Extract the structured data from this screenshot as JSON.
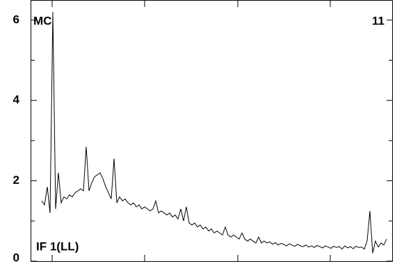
{
  "chart_data": {
    "type": "line",
    "label_left": "MC",
    "label_right": "11",
    "annotation": "IF 1(LL)",
    "color": "#000000",
    "ylim": [
      0,
      6.5
    ],
    "yticks": [
      0,
      2,
      4,
      6
    ],
    "yminorticks": [
      1,
      3,
      5
    ],
    "values": [
      1.5,
      1.4,
      1.85,
      1.2,
      6.2,
      1.3,
      2.2,
      1.45,
      1.6,
      1.55,
      1.65,
      1.6,
      1.7,
      1.75,
      1.8,
      1.75,
      2.85,
      1.75,
      1.95,
      2.1,
      2.15,
      2.2,
      2.05,
      1.85,
      1.7,
      1.55,
      2.55,
      1.45,
      1.6,
      1.5,
      1.55,
      1.45,
      1.4,
      1.45,
      1.35,
      1.4,
      1.3,
      1.35,
      1.3,
      1.25,
      1.3,
      1.5,
      1.2,
      1.25,
      1.2,
      1.15,
      1.2,
      1.1,
      1.15,
      1.05,
      1.3,
      1.0,
      1.35,
      0.95,
      0.9,
      0.95,
      0.85,
      0.9,
      0.8,
      0.85,
      0.75,
      0.8,
      0.7,
      0.75,
      0.7,
      0.65,
      0.85,
      0.65,
      0.6,
      0.65,
      0.6,
      0.55,
      0.7,
      0.55,
      0.5,
      0.55,
      0.5,
      0.45,
      0.6,
      0.45,
      0.5,
      0.45,
      0.48,
      0.42,
      0.46,
      0.4,
      0.44,
      0.42,
      0.38,
      0.43,
      0.4,
      0.37,
      0.42,
      0.38,
      0.36,
      0.4,
      0.35,
      0.38,
      0.34,
      0.39,
      0.36,
      0.33,
      0.38,
      0.35,
      0.32,
      0.37,
      0.34,
      0.36,
      0.3,
      0.38,
      0.33,
      0.36,
      0.31,
      0.37,
      0.34,
      0.35,
      0.3,
      0.5,
      1.25,
      0.2,
      0.5,
      0.35,
      0.45,
      0.4,
      0.55
    ]
  }
}
